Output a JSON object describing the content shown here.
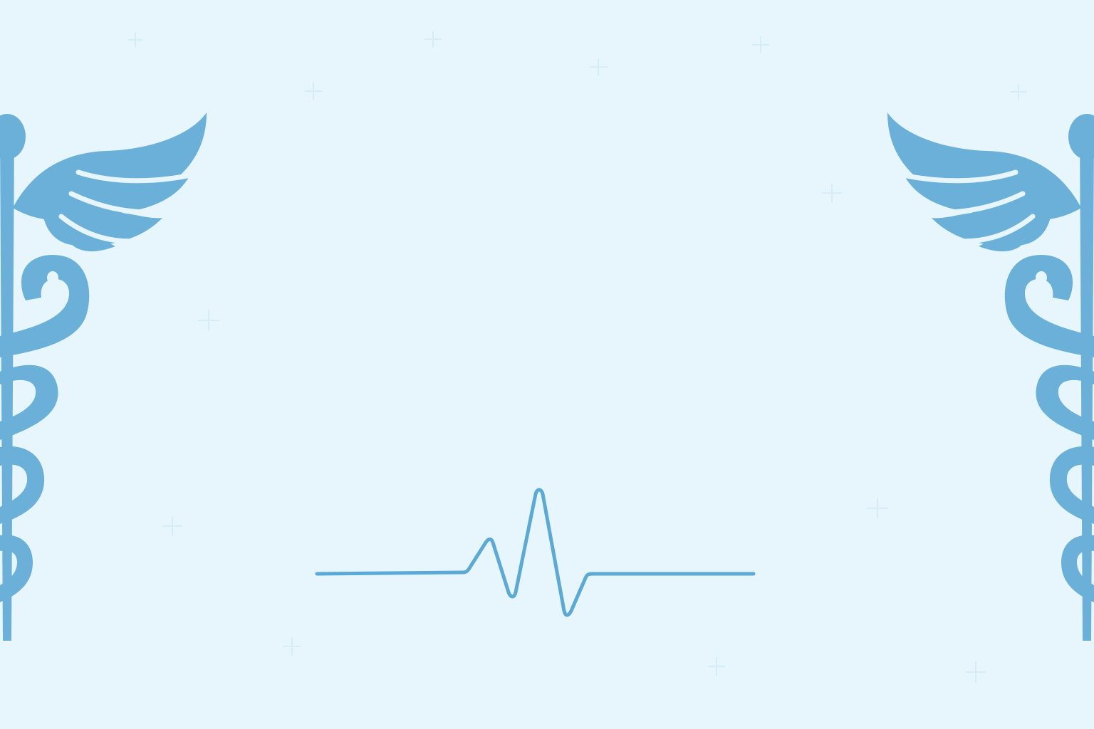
{
  "background": {
    "color": "#e7f6fd",
    "sparkle_color": "#d6edf8"
  },
  "decor": {
    "left_emblem": {
      "icon": "caduceus-icon",
      "color": "#6ab0d8"
    },
    "right_emblem": {
      "icon": "caduceus-icon",
      "color": "#6ab0d8"
    },
    "heartbeat_line": {
      "icon": "heartbeat-line-icon",
      "color": "#5aa9d6"
    }
  }
}
